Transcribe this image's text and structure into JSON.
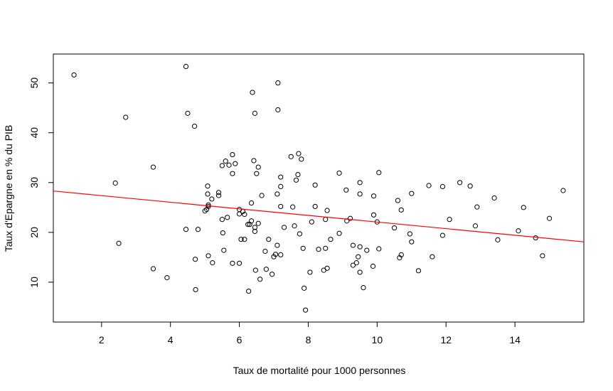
{
  "chart_data": {
    "type": "scatter",
    "title": "",
    "xlabel": "Taux de mortalité pour 1000 personnes",
    "ylabel": "Taux d'Epargne en % du PIB",
    "xlim": [
      0.6,
      16.0
    ],
    "ylim": [
      2.0,
      55.8
    ],
    "xticks": [
      "2",
      "4",
      "6",
      "8",
      "10",
      "12",
      "14"
    ],
    "yticks": [
      "10",
      "20",
      "30",
      "40",
      "50"
    ],
    "grid": false,
    "legend": "none",
    "point_color": "#000000",
    "line_color": "#ff0000",
    "regression_line": {
      "x": [
        0.6,
        16.0
      ],
      "y": [
        28.3,
        18.1
      ]
    },
    "points": [
      [
        1.2,
        51.6
      ],
      [
        2.4,
        29.9
      ],
      [
        2.5,
        17.8
      ],
      [
        2.7,
        43.1
      ],
      [
        3.5,
        33.1
      ],
      [
        3.5,
        12.7
      ],
      [
        3.9,
        10.9
      ],
      [
        4.45,
        53.3
      ],
      [
        4.45,
        20.6
      ],
      [
        4.5,
        43.9
      ],
      [
        4.7,
        41.3
      ],
      [
        4.72,
        14.6
      ],
      [
        4.73,
        8.5
      ],
      [
        4.8,
        20.6
      ],
      [
        5.0,
        24.3
      ],
      [
        5.05,
        24.6
      ],
      [
        5.08,
        29.3
      ],
      [
        5.08,
        27.7
      ],
      [
        5.1,
        25.5
      ],
      [
        5.1,
        25.2
      ],
      [
        5.1,
        15.3
      ],
      [
        5.2,
        26.7
      ],
      [
        5.22,
        13.9
      ],
      [
        5.4,
        28.0
      ],
      [
        5.4,
        27.4
      ],
      [
        5.5,
        33.4
      ],
      [
        5.5,
        22.6
      ],
      [
        5.52,
        19.9
      ],
      [
        5.55,
        16.4
      ],
      [
        5.6,
        34.3
      ],
      [
        5.65,
        23.0
      ],
      [
        5.7,
        33.5
      ],
      [
        5.8,
        35.6
      ],
      [
        5.8,
        31.8
      ],
      [
        5.8,
        13.8
      ],
      [
        5.88,
        33.8
      ],
      [
        6.0,
        24.6
      ],
      [
        6.0,
        23.7
      ],
      [
        6.0,
        13.8
      ],
      [
        6.05,
        18.6
      ],
      [
        6.1,
        24.2
      ],
      [
        6.15,
        23.6
      ],
      [
        6.15,
        18.6
      ],
      [
        6.25,
        21.6
      ],
      [
        6.27,
        8.2
      ],
      [
        6.3,
        21.6
      ],
      [
        6.35,
        22.3
      ],
      [
        6.35,
        25.9
      ],
      [
        6.38,
        48.1
      ],
      [
        6.42,
        34.4
      ],
      [
        6.45,
        43.9
      ],
      [
        6.45,
        21.0
      ],
      [
        6.45,
        20.2
      ],
      [
        6.47,
        12.4
      ],
      [
        6.5,
        31.8
      ],
      [
        6.55,
        33.1
      ],
      [
        6.55,
        21.8
      ],
      [
        6.6,
        10.6
      ],
      [
        6.65,
        27.4
      ],
      [
        6.75,
        16.2
      ],
      [
        6.78,
        12.6
      ],
      [
        6.85,
        18.6
      ],
      [
        6.95,
        11.6
      ],
      [
        7.0,
        15.1
      ],
      [
        7.05,
        15.6
      ],
      [
        7.1,
        17.4
      ],
      [
        7.1,
        27.7
      ],
      [
        7.12,
        50.0
      ],
      [
        7.12,
        44.6
      ],
      [
        7.2,
        31.1
      ],
      [
        7.2,
        29.2
      ],
      [
        7.2,
        25.2
      ],
      [
        7.2,
        15.5
      ],
      [
        7.3,
        21.0
      ],
      [
        7.5,
        35.2
      ],
      [
        7.55,
        25.1
      ],
      [
        7.6,
        21.3
      ],
      [
        7.65,
        30.5
      ],
      [
        7.7,
        31.6
      ],
      [
        7.72,
        35.8
      ],
      [
        7.75,
        19.7
      ],
      [
        7.8,
        34.7
      ],
      [
        7.85,
        16.8
      ],
      [
        7.88,
        8.8
      ],
      [
        7.92,
        4.4
      ],
      [
        8.05,
        12.0
      ],
      [
        8.1,
        22.1
      ],
      [
        8.2,
        29.5
      ],
      [
        8.2,
        25.2
      ],
      [
        8.3,
        16.6
      ],
      [
        8.45,
        12.4
      ],
      [
        8.5,
        22.6
      ],
      [
        8.5,
        16.8
      ],
      [
        8.55,
        24.4
      ],
      [
        8.55,
        12.8
      ],
      [
        8.65,
        18.6
      ],
      [
        8.9,
        31.9
      ],
      [
        8.9,
        19.8
      ],
      [
        9.1,
        28.5
      ],
      [
        9.12,
        22.3
      ],
      [
        9.22,
        22.8
      ],
      [
        9.3,
        17.4
      ],
      [
        9.3,
        13.4
      ],
      [
        9.4,
        13.9
      ],
      [
        9.45,
        15.1
      ],
      [
        9.5,
        30.0
      ],
      [
        9.5,
        27.7
      ],
      [
        9.5,
        17.1
      ],
      [
        9.5,
        12.0
      ],
      [
        9.6,
        8.9
      ],
      [
        9.7,
        16.4
      ],
      [
        9.88,
        13.2
      ],
      [
        9.9,
        27.3
      ],
      [
        9.9,
        23.5
      ],
      [
        10.0,
        22.1
      ],
      [
        10.05,
        32.0
      ],
      [
        10.05,
        16.7
      ],
      [
        10.5,
        20.9
      ],
      [
        10.6,
        26.4
      ],
      [
        10.65,
        14.9
      ],
      [
        10.7,
        24.5
      ],
      [
        10.7,
        15.5
      ],
      [
        10.95,
        19.7
      ],
      [
        11.0,
        27.8
      ],
      [
        11.0,
        18.1
      ],
      [
        11.2,
        12.3
      ],
      [
        11.5,
        29.4
      ],
      [
        11.6,
        15.1
      ],
      [
        11.9,
        29.2
      ],
      [
        11.9,
        19.4
      ],
      [
        12.1,
        22.6
      ],
      [
        12.4,
        30.0
      ],
      [
        12.7,
        29.3
      ],
      [
        12.85,
        21.3
      ],
      [
        12.9,
        25.1
      ],
      [
        13.4,
        26.9
      ],
      [
        13.5,
        18.5
      ],
      [
        14.1,
        20.3
      ],
      [
        14.25,
        25.0
      ],
      [
        14.6,
        18.9
      ],
      [
        14.8,
        15.3
      ],
      [
        15.0,
        22.8
      ],
      [
        15.4,
        28.4
      ]
    ]
  }
}
